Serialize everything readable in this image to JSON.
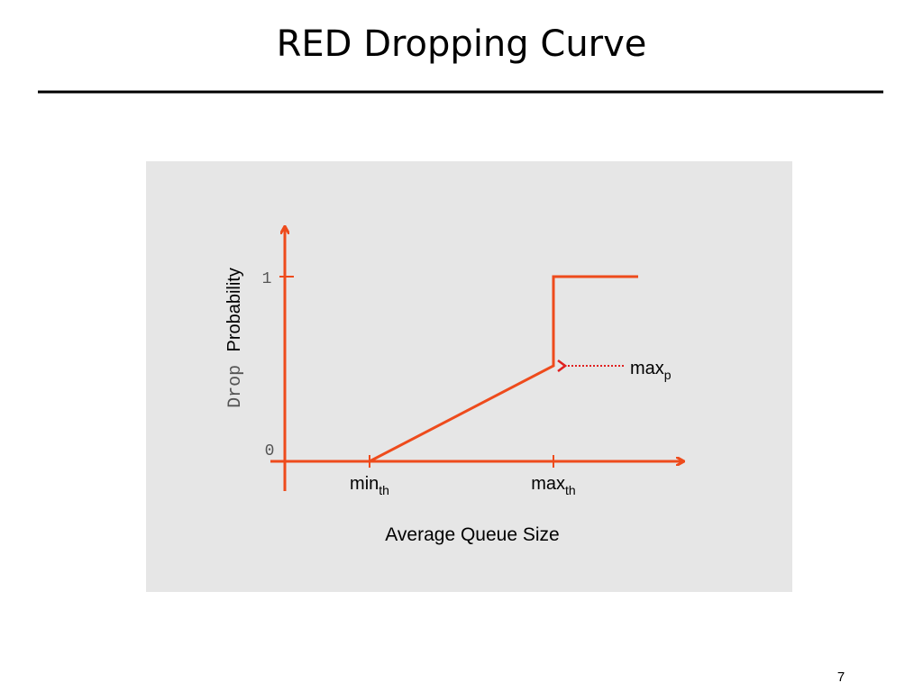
{
  "header": {
    "title": "RED Dropping Curve"
  },
  "diagram": {
    "y_axis_label": {
      "first": "Drop",
      "second": "Probability"
    },
    "y_ticks": [
      "1",
      "0"
    ],
    "x_ticks": [
      {
        "text": "min",
        "sub": "th"
      },
      {
        "text": "max",
        "sub": "th"
      }
    ],
    "annotation": {
      "text": "max",
      "sub": "p"
    },
    "x_axis_label": "Average Queue Size"
  },
  "footer": {
    "page_number": "7"
  }
}
